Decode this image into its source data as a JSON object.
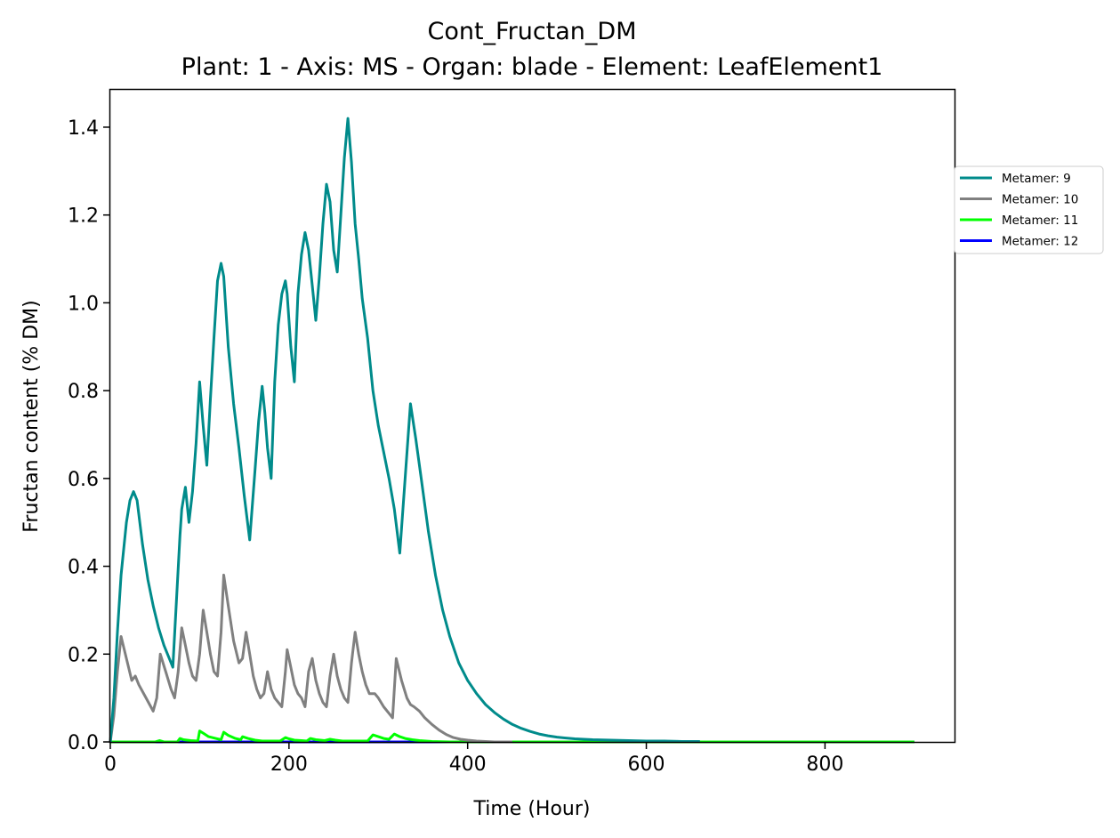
{
  "chart_data": {
    "type": "line",
    "title": "Cont_Fructan_DM",
    "subtitle": "Plant: 1 - Axis: MS - Organ: blade - Element: LeafElement1",
    "xlabel": "Time (Hour)",
    "ylabel": "Fructan content (% DM)",
    "xlim": [
      0,
      945
    ],
    "ylim": [
      0,
      1.485
    ],
    "xticks": [
      0,
      200,
      400,
      600,
      800
    ],
    "yticks": [
      0.0,
      0.2,
      0.4,
      0.6,
      0.8,
      1.0,
      1.2,
      1.4
    ],
    "xtick_labels": [
      "0",
      "200",
      "400",
      "600",
      "800"
    ],
    "ytick_labels": [
      "0.0",
      "0.2",
      "0.4",
      "0.6",
      "0.8",
      "1.0",
      "1.2",
      "1.4"
    ],
    "grid": false,
    "legend_position": "right",
    "series": [
      {
        "name": "Metamer: 9",
        "color": "#008B8B",
        "x": [
          0,
          4,
          8,
          12,
          18,
          22,
          26,
          30,
          36,
          42,
          48,
          54,
          60,
          66,
          70,
          74,
          78,
          80,
          84,
          88,
          92,
          96,
          100,
          104,
          108,
          112,
          116,
          120,
          124,
          127,
          132,
          138,
          144,
          150,
          156,
          162,
          166,
          170,
          173,
          176,
          180,
          184,
          188,
          192,
          196,
          198,
          202,
          206,
          210,
          214,
          218,
          222,
          226,
          230,
          234,
          238,
          242,
          246,
          250,
          254,
          258,
          262,
          266,
          270,
          274,
          278,
          282,
          288,
          294,
          300,
          306,
          312,
          318,
          324,
          330,
          336,
          342,
          348,
          356,
          364,
          372,
          380,
          390,
          400,
          410,
          420,
          430,
          440,
          450,
          460,
          470,
          480,
          490,
          500,
          510,
          520,
          540,
          560,
          580,
          600,
          620,
          640,
          660
        ],
        "y": [
          0.0,
          0.1,
          0.25,
          0.38,
          0.5,
          0.55,
          0.57,
          0.55,
          0.45,
          0.37,
          0.31,
          0.26,
          0.22,
          0.19,
          0.17,
          0.32,
          0.47,
          0.53,
          0.58,
          0.5,
          0.57,
          0.68,
          0.82,
          0.72,
          0.63,
          0.78,
          0.92,
          1.05,
          1.09,
          1.06,
          0.9,
          0.77,
          0.67,
          0.56,
          0.46,
          0.62,
          0.73,
          0.81,
          0.75,
          0.67,
          0.6,
          0.82,
          0.95,
          1.02,
          1.05,
          1.02,
          0.9,
          0.82,
          1.02,
          1.11,
          1.16,
          1.12,
          1.04,
          0.96,
          1.06,
          1.18,
          1.27,
          1.23,
          1.12,
          1.07,
          1.2,
          1.33,
          1.42,
          1.32,
          1.18,
          1.1,
          1.01,
          0.92,
          0.8,
          0.72,
          0.66,
          0.6,
          0.53,
          0.43,
          0.6,
          0.77,
          0.69,
          0.6,
          0.48,
          0.38,
          0.3,
          0.24,
          0.18,
          0.14,
          0.11,
          0.085,
          0.067,
          0.052,
          0.04,
          0.031,
          0.024,
          0.018,
          0.014,
          0.011,
          0.009,
          0.007,
          0.005,
          0.004,
          0.003,
          0.002,
          0.002,
          0.001,
          0.001
        ]
      },
      {
        "name": "Metamer: 10",
        "color": "#808080",
        "x": [
          0,
          4,
          8,
          12,
          18,
          24,
          28,
          32,
          40,
          48,
          52,
          56,
          62,
          68,
          72,
          76,
          80,
          84,
          88,
          92,
          96,
          100,
          104,
          108,
          112,
          116,
          120,
          124,
          127,
          132,
          138,
          144,
          148,
          152,
          156,
          160,
          164,
          168,
          172,
          176,
          180,
          184,
          188,
          192,
          196,
          198,
          202,
          206,
          210,
          214,
          218,
          222,
          226,
          230,
          234,
          238,
          242,
          246,
          250,
          254,
          258,
          262,
          266,
          270,
          274,
          278,
          282,
          286,
          290,
          296,
          300,
          306,
          312,
          316,
          320,
          326,
          332,
          336,
          340,
          346,
          352,
          360,
          368,
          376,
          384,
          392,
          400,
          410,
          420,
          430,
          440,
          450
        ],
        "y": [
          0.0,
          0.06,
          0.16,
          0.24,
          0.19,
          0.14,
          0.15,
          0.13,
          0.1,
          0.07,
          0.1,
          0.2,
          0.16,
          0.12,
          0.1,
          0.16,
          0.26,
          0.22,
          0.18,
          0.15,
          0.14,
          0.2,
          0.3,
          0.25,
          0.2,
          0.16,
          0.15,
          0.25,
          0.38,
          0.31,
          0.23,
          0.18,
          0.19,
          0.25,
          0.2,
          0.15,
          0.12,
          0.1,
          0.11,
          0.16,
          0.12,
          0.1,
          0.09,
          0.08,
          0.16,
          0.21,
          0.17,
          0.13,
          0.11,
          0.1,
          0.08,
          0.16,
          0.19,
          0.14,
          0.11,
          0.09,
          0.08,
          0.15,
          0.2,
          0.15,
          0.12,
          0.1,
          0.09,
          0.18,
          0.25,
          0.2,
          0.16,
          0.13,
          0.11,
          0.11,
          0.1,
          0.08,
          0.065,
          0.055,
          0.19,
          0.14,
          0.1,
          0.085,
          0.08,
          0.07,
          0.055,
          0.04,
          0.027,
          0.017,
          0.01,
          0.006,
          0.004,
          0.002,
          0.001,
          0.0,
          0.0,
          0.0
        ]
      },
      {
        "name": "Metamer: 11",
        "color": "#00FF00",
        "x": [
          0,
          50,
          55,
          60,
          75,
          78,
          82,
          90,
          98,
          100,
          104,
          110,
          118,
          124,
          127,
          132,
          140,
          146,
          148,
          154,
          162,
          170,
          190,
          196,
          200,
          206,
          214,
          220,
          224,
          230,
          240,
          246,
          252,
          260,
          288,
          294,
          300,
          306,
          312,
          318,
          324,
          330,
          338,
          346,
          360,
          380,
          400,
          420,
          500,
          600,
          700,
          800,
          900
        ],
        "y": [
          0.0,
          0.0,
          0.003,
          0.0,
          0.0,
          0.008,
          0.005,
          0.003,
          0.002,
          0.025,
          0.02,
          0.012,
          0.008,
          0.005,
          0.022,
          0.015,
          0.008,
          0.005,
          0.012,
          0.008,
          0.004,
          0.002,
          0.002,
          0.01,
          0.007,
          0.004,
          0.003,
          0.002,
          0.008,
          0.005,
          0.003,
          0.006,
          0.004,
          0.002,
          0.002,
          0.016,
          0.012,
          0.008,
          0.006,
          0.018,
          0.012,
          0.008,
          0.005,
          0.003,
          0.001,
          0.0,
          0.0,
          0.0,
          0.0,
          0.0,
          0.0,
          0.0,
          0.0
        ]
      },
      {
        "name": "Metamer: 12",
        "color": "#0000FF",
        "x": [
          0,
          200,
          400,
          600,
          700,
          800,
          900
        ],
        "y": [
          0.0,
          0.0,
          0.0,
          0.0,
          0.0,
          0.0,
          0.0
        ]
      }
    ]
  }
}
